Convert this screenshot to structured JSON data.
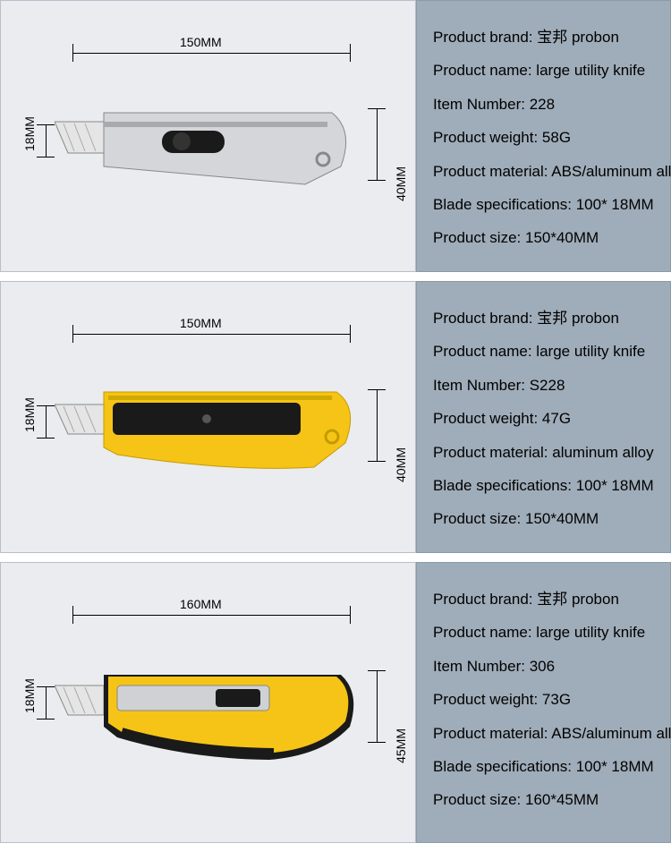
{
  "colors": {
    "diagram_bg": "#eaecef",
    "specs_bg": "#9facb9",
    "dim_line": "#000000",
    "text": "#000000"
  },
  "rows": [
    {
      "knife_style": "silver",
      "dimensions": {
        "length": "150MM",
        "blade_h": "18MM",
        "body_h": "40MM"
      },
      "specs": {
        "brand_label": "Product brand:",
        "brand": "宝邦 probon",
        "name_label": "Product name:",
        "name": "large utility knife",
        "item_label": "Item Number:",
        "item": "228",
        "weight_label": "Product weight:",
        "weight": "58G",
        "material_label": "Product material:",
        "material": "ABS/aluminum alloy",
        "blade_label": "Blade specifications:",
        "blade": "100* 18MM",
        "size_label": "Product size:",
        "size": "150*40MM"
      }
    },
    {
      "knife_style": "yellow-black",
      "dimensions": {
        "length": "150MM",
        "blade_h": "18MM",
        "body_h": "40MM"
      },
      "specs": {
        "brand_label": "Product brand:",
        "brand": "宝邦 probon",
        "name_label": "Product name:",
        "name": "large utility knife",
        "item_label": "Item Number:",
        "item": "S228",
        "weight_label": "Product weight:",
        "weight": "47G",
        "material_label": "Product material:",
        "material": "aluminum alloy",
        "blade_label": "Blade specifications:",
        "blade": "100* 18MM",
        "size_label": "Product size:",
        "size": "150*40MM"
      }
    },
    {
      "knife_style": "yellow-grip",
      "dimensions": {
        "length": "160MM",
        "blade_h": "18MM",
        "body_h": "45MM"
      },
      "specs": {
        "brand_label": "Product brand:",
        "brand": "宝邦 probon",
        "name_label": "Product name:",
        "name": "large utility knife",
        "item_label": "Item Number:",
        "item": "306",
        "weight_label": "Product weight:",
        "weight": "73G",
        "material_label": "Product material:",
        "material": "ABS/aluminum alloy",
        "blade_label": "Blade specifications:",
        "blade": "100* 18MM",
        "size_label": "Product size:",
        "size": "160*45MM"
      }
    }
  ]
}
